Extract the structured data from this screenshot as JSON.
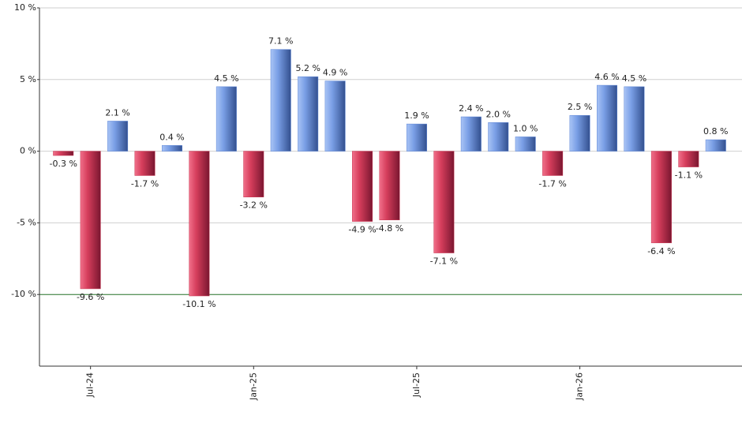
{
  "chart_data": {
    "type": "bar",
    "categories": [
      null,
      "Jul-24",
      null,
      null,
      null,
      null,
      null,
      "Jan-25",
      null,
      null,
      null,
      null,
      null,
      "Jul-25",
      null,
      null,
      null,
      null,
      null,
      "Jan-26",
      null,
      null,
      null,
      null,
      null
    ],
    "values": [
      -0.3,
      -9.6,
      2.1,
      -1.7,
      0.4,
      -10.1,
      4.5,
      -3.2,
      7.1,
      5.2,
      4.9,
      -4.9,
      -4.8,
      1.9,
      -7.1,
      2.4,
      2.0,
      1.0,
      -1.7,
      2.5,
      4.6,
      4.5,
      -6.4,
      -1.1,
      0.8
    ],
    "value_labels": [
      "-0.3 %",
      "-9.6 %",
      "2.1 %",
      "-1.7 %",
      "0.4 %",
      "-10.1 %",
      "4.5 %",
      "-3.2 %",
      "7.1 %",
      "5.2 %",
      "4.9 %",
      "-4.9 %",
      "-4.8 %",
      "1.9 %",
      "-7.1 %",
      "2.4 %",
      "2.0 %",
      "1.0 %",
      "-1.7 %",
      "2.5 %",
      "4.6 %",
      "4.5 %",
      "-6.4 %",
      "-1.1 %",
      "0.8 %"
    ],
    "positive_color": "#5b84d6",
    "negative_color": "#c8334f",
    "ylim": [
      -15,
      10
    ],
    "yticks": [
      {
        "value": 10,
        "label": "10 %"
      },
      {
        "value": 5,
        "label": "5 %"
      },
      {
        "value": 0,
        "label": "0 %"
      },
      {
        "value": -5,
        "label": "-5 %"
      },
      {
        "value": -10,
        "label": "-10 %"
      }
    ],
    "grid": true,
    "reference_line": -10,
    "reference_color": "#2e7d32"
  }
}
